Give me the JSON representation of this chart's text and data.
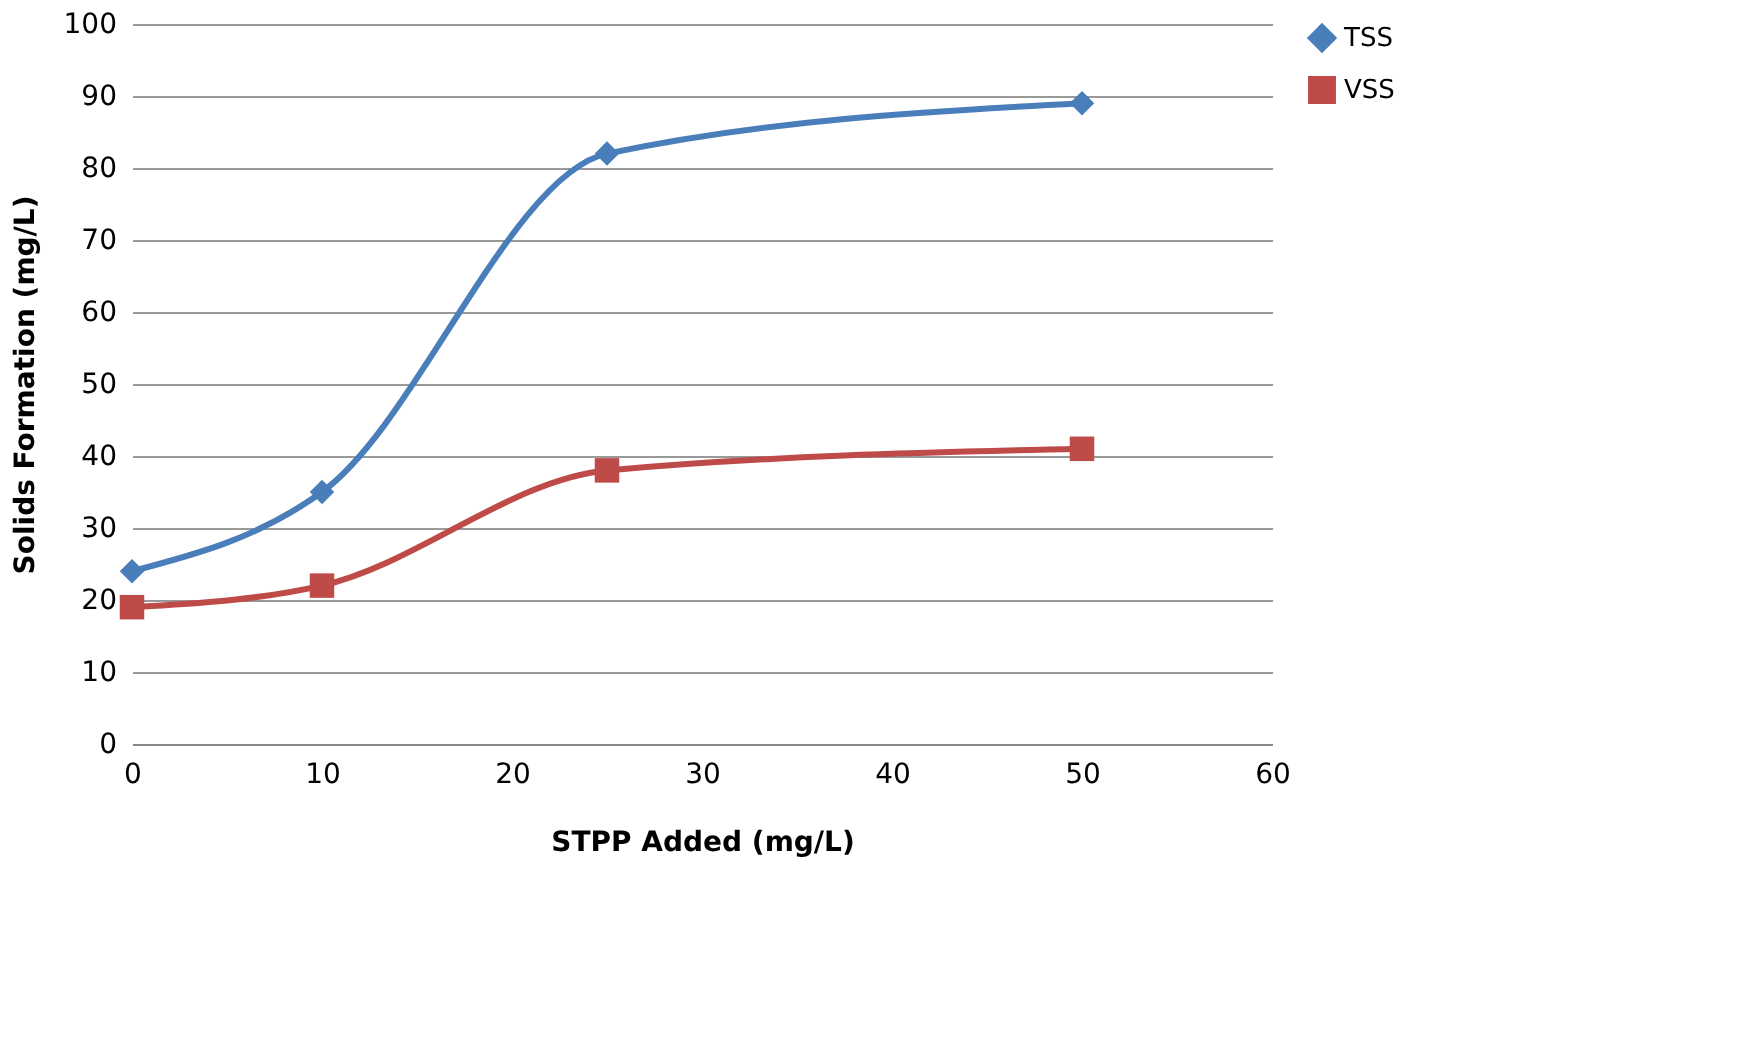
{
  "chart_data": {
    "type": "line",
    "xlabel": "STPP Added (mg/L)",
    "ylabel": "Solids  Formation (mg/L)",
    "x": [
      0,
      10,
      25,
      50
    ],
    "series": [
      {
        "name": "TSS",
        "color": "#4a7ebb",
        "marker": "diamond",
        "values": [
          24,
          35,
          82,
          89
        ]
      },
      {
        "name": "VSS",
        "color": "#be4b48",
        "marker": "square",
        "values": [
          19,
          22,
          38,
          41
        ]
      }
    ],
    "xlim": [
      0,
      60
    ],
    "xticks": [
      0,
      10,
      20,
      30,
      40,
      50,
      60
    ],
    "ylim": [
      0,
      100
    ],
    "yticks": [
      0,
      10,
      20,
      30,
      40,
      50,
      60,
      70,
      80,
      90,
      100
    ],
    "grid": "y",
    "legend": "right",
    "line_style": "solid"
  }
}
